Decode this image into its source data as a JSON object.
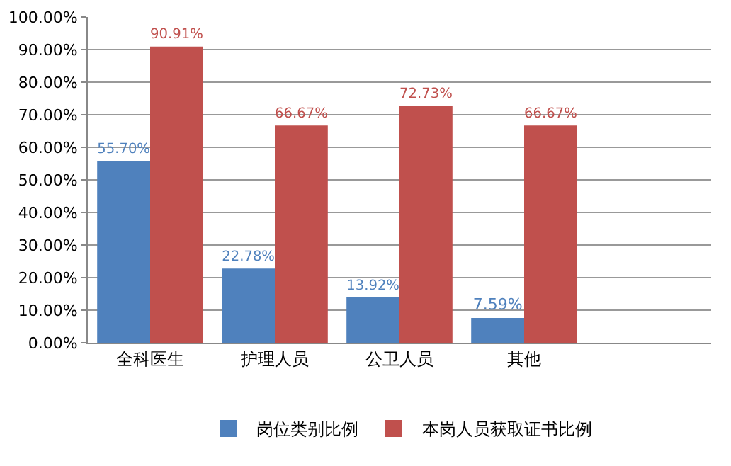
{
  "chart_data": {
    "type": "bar",
    "categories": [
      "全科医生",
      "护理人员",
      "公卫人员",
      "其他",
      null
    ],
    "series": [
      {
        "name": "岗位类别比例",
        "color": "#4f81bd",
        "values": [
          55.7,
          22.78,
          13.92,
          7.59,
          null
        ],
        "value_labels": [
          "55.70%",
          "22.78%",
          "13.92%",
          "7.59%",
          null
        ]
      },
      {
        "name": "本岗人员获取证书比例",
        "color": "#c0504d",
        "values": [
          90.91,
          66.67,
          72.73,
          66.67,
          null
        ],
        "value_labels": [
          "90.91%",
          "66.67%",
          "72.73%",
          "66.67%",
          null
        ]
      }
    ],
    "ylim": [
      0,
      100
    ],
    "yticks": [
      {
        "value": 0,
        "label": "0.00%"
      },
      {
        "value": 10,
        "label": "10.00%"
      },
      {
        "value": 20,
        "label": "20.00%"
      },
      {
        "value": 30,
        "label": "30.00%"
      },
      {
        "value": 40,
        "label": "40.00%"
      },
      {
        "value": 50,
        "label": "50.00%"
      },
      {
        "value": 60,
        "label": "60.00%"
      },
      {
        "value": 70,
        "label": "70.00%"
      },
      {
        "value": 80,
        "label": "80.00%"
      },
      {
        "value": 90,
        "label": "90.00%"
      },
      {
        "value": 100,
        "label": "100.00%"
      }
    ],
    "grid": "y",
    "legend": "bottom"
  }
}
